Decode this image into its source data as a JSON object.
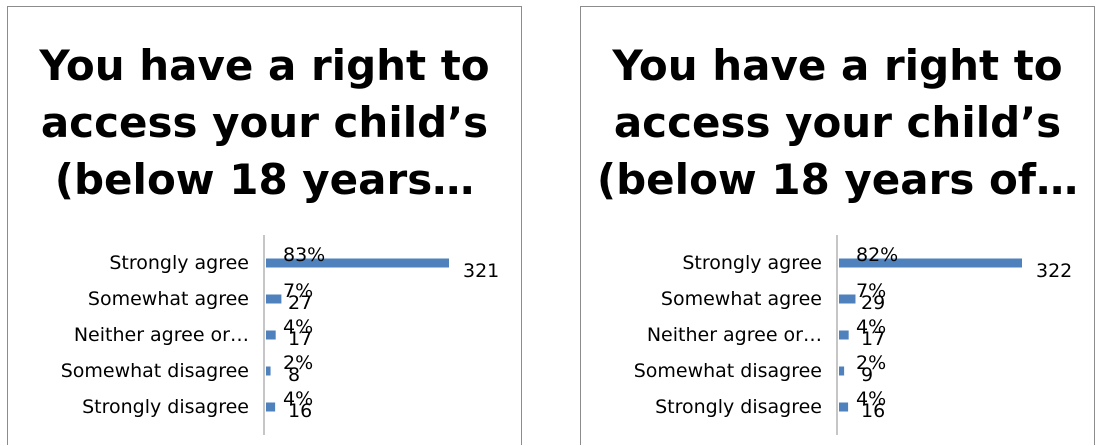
{
  "chart_data": [
    {
      "type": "bar",
      "title_lines": [
        "You have a right to",
        "access your child’s",
        "(below 18 years…"
      ],
      "categories": [
        "Strongly agree",
        "Somewhat agree",
        "Neither agree or…",
        "Somewhat disagree",
        "Strongly disagree"
      ],
      "series": [
        {
          "values": [
            321,
            27,
            17,
            8,
            16
          ],
          "percent_labels": [
            "83%",
            "7%",
            "4%",
            "2%",
            "4%"
          ]
        }
      ],
      "orientation": "horizontal",
      "bar_color": "#4f81bd",
      "xlim": [
        0,
        321
      ],
      "legend": "none",
      "grid": false
    },
    {
      "type": "bar",
      "title_lines": [
        "You have a right to",
        "access your child’s",
        "(below 18 years of…"
      ],
      "categories": [
        "Strongly agree",
        "Somewhat agree",
        "Neither agree or…",
        "Somewhat disagree",
        "Strongly disagree"
      ],
      "series": [
        {
          "values": [
            322,
            29,
            17,
            9,
            16
          ],
          "percent_labels": [
            "82%",
            "7%",
            "4%",
            "2%",
            "4%"
          ]
        }
      ],
      "orientation": "horizontal",
      "bar_color": "#4f81bd",
      "xlim": [
        0,
        322
      ],
      "legend": "none",
      "grid": false
    }
  ]
}
